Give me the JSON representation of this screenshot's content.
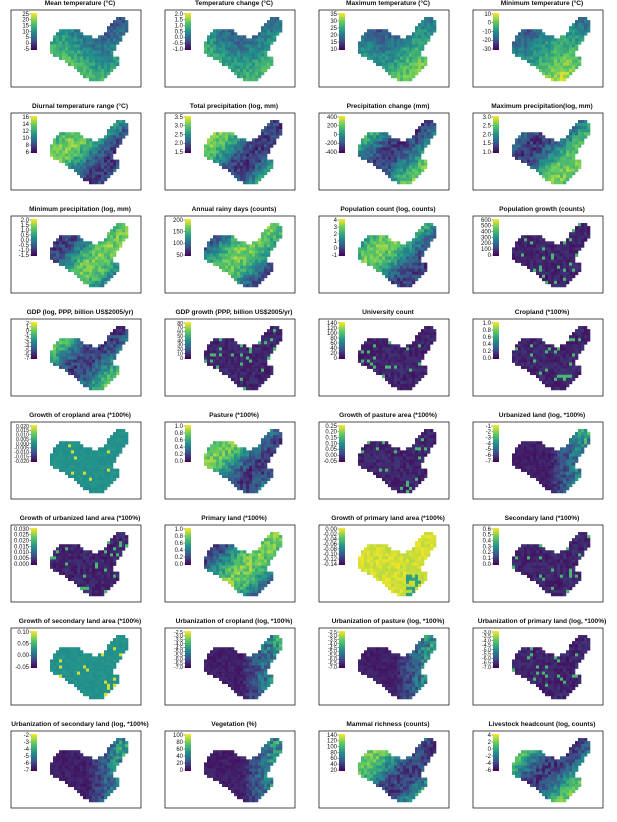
{
  "palette": [
    "#440154",
    "#3b528b",
    "#21918c",
    "#5ec962",
    "#fde725"
  ],
  "chart_data": [
    {
      "type": "heatmap",
      "title": "Mean temperature (°C)",
      "ticks": [
        "25",
        "20",
        "15",
        "10",
        "5",
        "0",
        "-5"
      ],
      "scale": "mean"
    },
    {
      "type": "heatmap",
      "title": "Temperature change (°C)",
      "ticks": [
        "2.0",
        "1.5",
        "1.0",
        "0.5",
        "0.0",
        "-0.5",
        "-1.0"
      ],
      "scale": "mean"
    },
    {
      "type": "heatmap",
      "title": "Maximum temperature (°C)",
      "ticks": [
        "35",
        "30",
        "25",
        "20",
        "15",
        "10"
      ],
      "scale": "mean"
    },
    {
      "type": "heatmap",
      "title": "Minimum temperature (°C)",
      "ticks": [
        "10",
        "0",
        "-10",
        "-20",
        "-30"
      ],
      "scale": "mean"
    },
    {
      "type": "heatmap",
      "title": "Diurnal temperature range (°C)",
      "ticks": [
        "16",
        "14",
        "12",
        "10",
        "8",
        "6"
      ],
      "scale": "mid"
    },
    {
      "type": "heatmap",
      "title": "Total precipitation (log, mm)",
      "ticks": [
        "3.5",
        "3.0",
        "2.5",
        "2.0",
        "1.5"
      ],
      "scale": "mid"
    },
    {
      "type": "heatmap",
      "title": "Precipitation change (mm)",
      "ticks": [
        "400",
        "200",
        "0",
        "-200",
        "-400"
      ],
      "scale": "mid"
    },
    {
      "type": "heatmap",
      "title": "Maximum precipitation(log, mm)",
      "ticks": [
        "3.0",
        "2.5",
        "2.0",
        "1.5",
        "1.0"
      ],
      "scale": "mid"
    },
    {
      "type": "heatmap",
      "title": "Minimum precipitation (log, mm)",
      "ticks": [
        "2.0",
        "1.5",
        "1.0",
        "0.5",
        "0.0",
        "-0.5",
        "-1.0",
        "-1.5"
      ],
      "scale": "mid"
    },
    {
      "type": "heatmap",
      "title": "Annual rainy days (counts)",
      "ticks": [
        "200",
        "150",
        "100",
        "50"
      ],
      "scale": "mid"
    },
    {
      "type": "heatmap",
      "title": "Population count (log, counts)",
      "ticks": [
        "4",
        "3",
        "2",
        "1",
        "0",
        "-1"
      ],
      "scale": "mid"
    },
    {
      "type": "heatmap",
      "title": "Population growth (counts)",
      "ticks": [
        "600",
        "500",
        "400",
        "300",
        "200",
        "100",
        "0"
      ],
      "scale": "low"
    },
    {
      "type": "heatmap",
      "title": "GDP (log, PPP, billion US$2005/yr)",
      "ticks": [
        "2",
        "1",
        "0",
        "-1",
        "-2",
        "-3",
        "-4",
        "-5",
        "-6",
        "-7"
      ],
      "scale": "mid"
    },
    {
      "type": "heatmap",
      "title": "GDP growth (PPP, billion US$2005/yr)",
      "ticks": [
        "80",
        "70",
        "60",
        "50",
        "40",
        "30",
        "20",
        "10",
        "0"
      ],
      "scale": "low"
    },
    {
      "type": "heatmap",
      "title": "University count",
      "ticks": [
        "140",
        "120",
        "100",
        "80",
        "60",
        "40",
        "20",
        "0"
      ],
      "scale": "low"
    },
    {
      "type": "heatmap",
      "title": "Cropland (*100%)",
      "ticks": [
        "1.0",
        "0.8",
        "0.6",
        "0.4",
        "0.2",
        "0.0"
      ],
      "scale": "low"
    },
    {
      "type": "heatmap",
      "title": "Growth of cropland area (*100%)",
      "ticks": [
        "0.020",
        "0.015",
        "0.010",
        "0.005",
        "0.000",
        "-0.005",
        "-0.010",
        "-0.015",
        "-0.020"
      ],
      "scale": "flat"
    },
    {
      "type": "heatmap",
      "title": "Pasture (*100%)",
      "ticks": [
        "1.0",
        "0.8",
        "0.6",
        "0.4",
        "0.2",
        "0.0"
      ],
      "scale": "mid"
    },
    {
      "type": "heatmap",
      "title": "Growth of pasture area (*100%)",
      "ticks": [
        "0.25",
        "0.20",
        "0.15",
        "0.10",
        "0.05",
        "0.00",
        "-0.05"
      ],
      "scale": "low"
    },
    {
      "type": "heatmap",
      "title": "Urbanized land (log, *100%)",
      "ticks": [
        "-1",
        "-2",
        "-3",
        "-4",
        "-5",
        "-6",
        "-7"
      ],
      "scale": "east"
    },
    {
      "type": "heatmap",
      "title": "Growth of urbanized land area (*100%)",
      "ticks": [
        "0.030",
        "0.025",
        "0.020",
        "0.015",
        "0.010",
        "0.005",
        "0.000"
      ],
      "scale": "low"
    },
    {
      "type": "heatmap",
      "title": "Primary land (*100%)",
      "ticks": [
        "1.0",
        "0.8",
        "0.6",
        "0.4",
        "0.2",
        "0.0"
      ],
      "scale": "mid"
    },
    {
      "type": "heatmap",
      "title": "Growth of primary land area (*100%)",
      "ticks": [
        "0.00",
        "-0.02",
        "-0.04",
        "-0.06",
        "-0.08",
        "-0.10",
        "-0.12",
        "-0.14"
      ],
      "scale": "high"
    },
    {
      "type": "heatmap",
      "title": "Secondary land (*100%)",
      "ticks": [
        "0.6",
        "0.5",
        "0.4",
        "0.3",
        "0.2",
        "0.1",
        "0.0"
      ],
      "scale": "low"
    },
    {
      "type": "heatmap",
      "title": "Growth of secondary land area (*100%)",
      "ticks": [
        "0.10",
        "0.05",
        "0.00",
        "-0.05"
      ],
      "scale": "flat"
    },
    {
      "type": "heatmap",
      "title": "Urbanization of cropland (log, *100%)",
      "ticks": [
        "-2.5",
        "-3.0",
        "-3.5",
        "-4.0",
        "-4.5",
        "-5.0",
        "-5.5",
        "-6.0",
        "-6.5",
        "-7.0"
      ],
      "scale": "east"
    },
    {
      "type": "heatmap",
      "title": "Urbanization of pasture (log, *100%)",
      "ticks": [
        "-2.5",
        "-3.0",
        "-3.5",
        "-4.0",
        "-4.5",
        "-5.0",
        "-5.5",
        "-6.0",
        "-6.5",
        "-7.0"
      ],
      "scale": "east"
    },
    {
      "type": "heatmap",
      "title": "Urbanization of primary land (log, *100%)",
      "ticks": [
        "-3.0",
        "-3.5",
        "-4.0",
        "-4.5",
        "-5.0",
        "-5.5",
        "-6.0",
        "-6.5",
        "-7.0"
      ],
      "scale": "low"
    },
    {
      "type": "heatmap",
      "title": "Urbanization of secondary land (log, *100%)",
      "ticks": [
        "-2",
        "-3",
        "-4",
        "-5",
        "-6",
        "-7"
      ],
      "scale": "east"
    },
    {
      "type": "heatmap",
      "title": "Vegetation (%)",
      "ticks": [
        "100",
        "80",
        "60",
        "40",
        "20",
        "0"
      ],
      "scale": "east"
    },
    {
      "type": "heatmap",
      "title": "Mammal richness (counts)",
      "ticks": [
        "140",
        "120",
        "100",
        "80",
        "60",
        "40",
        "20"
      ],
      "scale": "mid"
    },
    {
      "type": "heatmap",
      "title": "Livestock headcount (log, counts)",
      "ticks": [
        "4",
        "2",
        "0",
        "-2",
        "-4",
        "-6"
      ],
      "scale": "mid"
    }
  ]
}
